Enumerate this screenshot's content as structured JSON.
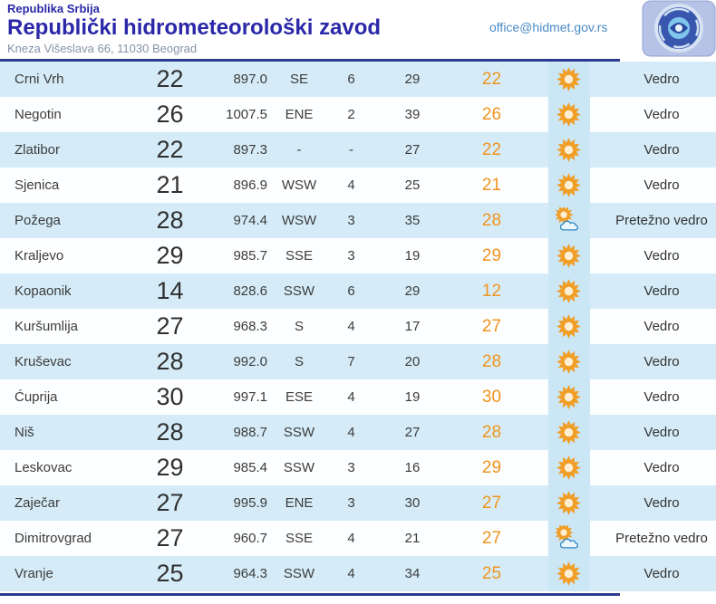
{
  "header": {
    "country": "Republika Srbija",
    "title": "Republički hidrometeorološki zavod",
    "address": "Kneza Višeslava 66, 11030 Beograd",
    "email": "office@hidmet.gov.rs",
    "logo": "rhmz-serbia-logo"
  },
  "colors": {
    "title_blue": "#2a28a8",
    "divider_blue": "#2b3a8f",
    "row_blue": "#d5ecf8",
    "row_white": "#fdfeff",
    "icon_cell_blue": "#cbe6f4",
    "accent_orange": "#f0941e",
    "email_blue": "#4a8cc8",
    "sun_orange": "#f19e26"
  },
  "table": {
    "rows": [
      {
        "station": "Crni Vrh",
        "temp": "22",
        "pressure": "897.0",
        "dir": "SE",
        "speed": "6",
        "hum": "29",
        "feels": "22",
        "icon": "sun",
        "desc": "Vedro"
      },
      {
        "station": "Negotin",
        "temp": "26",
        "pressure": "1007.5",
        "dir": "ENE",
        "speed": "2",
        "hum": "39",
        "feels": "26",
        "icon": "sun",
        "desc": "Vedro"
      },
      {
        "station": "Zlatibor",
        "temp": "22",
        "pressure": "897.3",
        "dir": "-",
        "speed": "-",
        "hum": "27",
        "feels": "22",
        "icon": "sun",
        "desc": "Vedro"
      },
      {
        "station": "Sjenica",
        "temp": "21",
        "pressure": "896.9",
        "dir": "WSW",
        "speed": "4",
        "hum": "25",
        "feels": "21",
        "icon": "sun",
        "desc": "Vedro"
      },
      {
        "station": "Požega",
        "temp": "28",
        "pressure": "974.4",
        "dir": "WSW",
        "speed": "3",
        "hum": "35",
        "feels": "28",
        "icon": "sun-cloud",
        "desc": "Pretežno vedro"
      },
      {
        "station": "Kraljevo",
        "temp": "29",
        "pressure": "985.7",
        "dir": "SSE",
        "speed": "3",
        "hum": "19",
        "feels": "29",
        "icon": "sun",
        "desc": "Vedro"
      },
      {
        "station": "Kopaonik",
        "temp": "14",
        "pressure": "828.6",
        "dir": "SSW",
        "speed": "6",
        "hum": "29",
        "feels": "12",
        "icon": "sun",
        "desc": "Vedro"
      },
      {
        "station": "Kuršumlija",
        "temp": "27",
        "pressure": "968.3",
        "dir": "S",
        "speed": "4",
        "hum": "17",
        "feels": "27",
        "icon": "sun",
        "desc": "Vedro"
      },
      {
        "station": "Kruševac",
        "temp": "28",
        "pressure": "992.0",
        "dir": "S",
        "speed": "7",
        "hum": "20",
        "feels": "28",
        "icon": "sun",
        "desc": "Vedro"
      },
      {
        "station": "Ćuprija",
        "temp": "30",
        "pressure": "997.1",
        "dir": "ESE",
        "speed": "4",
        "hum": "19",
        "feels": "30",
        "icon": "sun",
        "desc": "Vedro"
      },
      {
        "station": "Niš",
        "temp": "28",
        "pressure": "988.7",
        "dir": "SSW",
        "speed": "4",
        "hum": "27",
        "feels": "28",
        "icon": "sun",
        "desc": "Vedro"
      },
      {
        "station": "Leskovac",
        "temp": "29",
        "pressure": "985.4",
        "dir": "SSW",
        "speed": "3",
        "hum": "16",
        "feels": "29",
        "icon": "sun",
        "desc": "Vedro"
      },
      {
        "station": "Zaječar",
        "temp": "27",
        "pressure": "995.9",
        "dir": "ENE",
        "speed": "3",
        "hum": "30",
        "feels": "27",
        "icon": "sun",
        "desc": "Vedro"
      },
      {
        "station": "Dimitrovgrad",
        "temp": "27",
        "pressure": "960.7",
        "dir": "SSE",
        "speed": "4",
        "hum": "21",
        "feels": "27",
        "icon": "sun-cloud",
        "desc": "Pretežno vedro"
      },
      {
        "station": "Vranje",
        "temp": "25",
        "pressure": "964.3",
        "dir": "SSW",
        "speed": "4",
        "hum": "34",
        "feels": "25",
        "icon": "sun",
        "desc": "Vedro"
      }
    ]
  }
}
